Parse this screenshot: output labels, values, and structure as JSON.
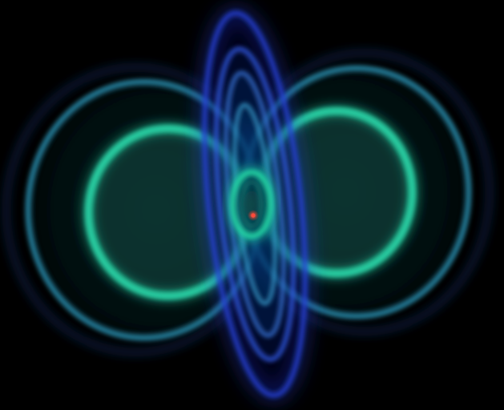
{
  "scene": {
    "background_color": "#000000",
    "subject": "volume-rendered-orbital-isosurfaces",
    "lobe_outer_color": "#2fa3c8",
    "lobe_inner_color": "#28d6a8",
    "ring_color": "#2540d8",
    "core_color": "#24d9a6",
    "nucleus_color": "#ff4a3a"
  }
}
